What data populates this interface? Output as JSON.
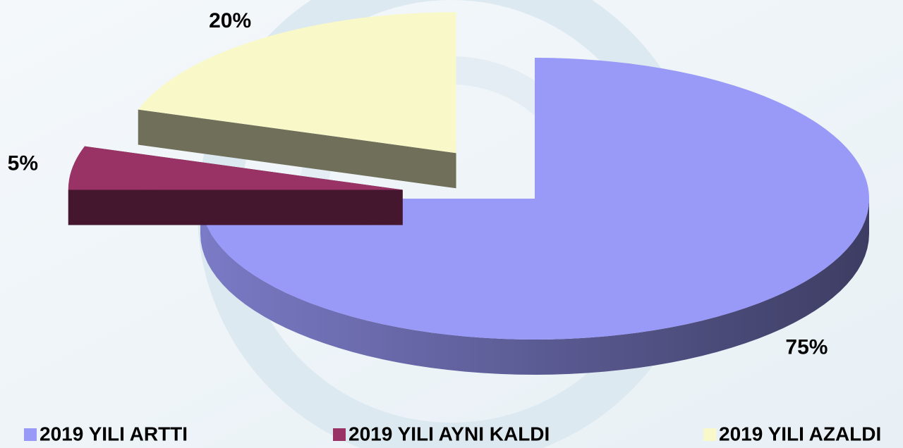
{
  "chart_data": {
    "type": "pie",
    "categories": [
      "2019 YILI ARTTI",
      "2019 YILI AYNI KALDI",
      "2019 YILI AZALDI"
    ],
    "values": [
      75,
      5,
      20
    ],
    "value_labels": [
      "75%",
      "5%",
      "20%"
    ],
    "colors": [
      "#9999f8",
      "#993366",
      "#f8f8c8"
    ],
    "legend": "bottom"
  }
}
